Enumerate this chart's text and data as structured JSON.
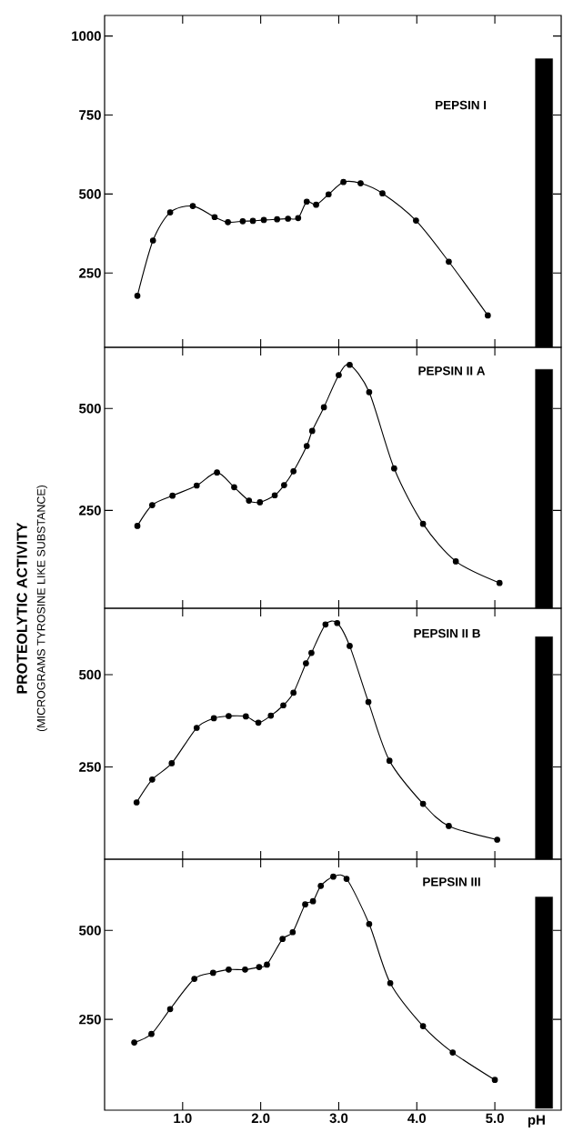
{
  "chart_data": [
    {
      "type": "line",
      "title": "PEPSIN I",
      "xlim": [
        0,
        5.85
      ],
      "ylim": [
        15,
        1065
      ],
      "xticks": [
        1,
        2,
        3,
        4,
        5
      ],
      "yticks": [
        250,
        500,
        750,
        1000
      ],
      "tick_labels": "y",
      "marker": "circle",
      "line_style": "solid",
      "series": [
        {
          "color": "#000000",
          "x": [
            0.42,
            0.62,
            0.84,
            1.13,
            1.41,
            1.58,
            1.77,
            1.9,
            2.04,
            2.21,
            2.35,
            2.48,
            2.59,
            2.71,
            2.87,
            3.06,
            3.28,
            3.56,
            3.99,
            4.41,
            4.91
          ],
          "values": [
            178,
            353,
            442,
            462,
            427,
            411,
            414,
            415,
            418,
            420,
            422,
            424,
            476,
            466,
            499,
            538,
            534,
            502,
            416,
            286,
            116
          ]
        },
        {
          "type": "bar",
          "color": "#000000",
          "x": [
            5.63
          ],
          "values": [
            928
          ]
        }
      ]
    },
    {
      "type": "line",
      "title": "PEPSIN II A",
      "ylabel": "PROTEOLYTIC ACTIVITY",
      "xlim": [
        0,
        5.85
      ],
      "ylim": [
        10,
        650
      ],
      "xticks": [
        1,
        2,
        3,
        4,
        5
      ],
      "yticks": [
        250,
        500
      ],
      "tick_labels": "y",
      "marker": "circle",
      "line_style": "solid",
      "series": [
        {
          "color": "#000000",
          "x": [
            0.42,
            0.61,
            0.87,
            1.18,
            1.44,
            1.66,
            1.85,
            1.99,
            2.18,
            2.3,
            2.42,
            2.59,
            2.66,
            2.81,
            3.0,
            3.14,
            3.39,
            3.71,
            4.08,
            4.5,
            5.06
          ],
          "values": [
            212,
            263,
            286,
            311,
            343,
            307,
            274,
            270,
            287,
            312,
            346,
            408,
            445,
            503,
            582,
            607,
            540,
            353,
            217,
            125,
            72
          ]
        },
        {
          "type": "bar",
          "color": "#000000",
          "x": [
            5.63
          ],
          "values": [
            596
          ]
        }
      ]
    },
    {
      "type": "line",
      "title": "PEPSIN II B",
      "ylabel": "(MICROGRAMS TYROSINE LIKE SUBSTANCE)",
      "xlim": [
        0,
        5.85
      ],
      "ylim": [
        0,
        680
      ],
      "xticks": [
        1,
        2,
        3,
        4,
        5
      ],
      "yticks": [
        250,
        500
      ],
      "tick_labels": "y",
      "marker": "circle",
      "line_style": "solid",
      "series": [
        {
          "color": "#000000",
          "x": [
            0.41,
            0.61,
            0.86,
            1.18,
            1.4,
            1.59,
            1.81,
            1.97,
            2.13,
            2.29,
            2.42,
            2.58,
            2.65,
            2.83,
            2.98,
            3.14,
            3.38,
            3.65,
            4.08,
            4.41,
            5.03
          ],
          "values": [
            154,
            216,
            260,
            356,
            382,
            388,
            387,
            370,
            389,
            417,
            451,
            531,
            559,
            636,
            640,
            578,
            426,
            267,
            150,
            90,
            53
          ]
        },
        {
          "type": "bar",
          "color": "#000000",
          "x": [
            5.63
          ],
          "values": [
            603
          ]
        }
      ]
    },
    {
      "type": "line",
      "title": "PEPSIN III",
      "xlabel": "pH",
      "xlim": [
        0,
        5.85
      ],
      "ylim": [
        -5,
        700
      ],
      "xticks": [
        {
          "value": 1,
          "label": "1.0"
        },
        {
          "value": 2,
          "label": "2.0"
        },
        {
          "value": 3,
          "label": "3.0"
        },
        {
          "value": 4,
          "label": "4.0"
        },
        {
          "value": 5,
          "label": "5.0"
        }
      ],
      "yticks": [
        250,
        500
      ],
      "marker": "circle",
      "line_style": "solid",
      "series": [
        {
          "color": "#000000",
          "x": [
            0.38,
            0.6,
            0.84,
            1.15,
            1.39,
            1.59,
            1.8,
            1.98,
            2.08,
            2.28,
            2.41,
            2.57,
            2.67,
            2.77,
            2.93,
            3.1,
            3.39,
            3.66,
            4.08,
            4.46,
            5.0
          ],
          "values": [
            185,
            209,
            279,
            364,
            381,
            390,
            390,
            397,
            404,
            476,
            495,
            573,
            582,
            625,
            651,
            645,
            518,
            352,
            231,
            157,
            80
          ]
        },
        {
          "type": "bar",
          "color": "#000000",
          "x": [
            5.63
          ],
          "values": [
            594
          ]
        }
      ]
    }
  ]
}
